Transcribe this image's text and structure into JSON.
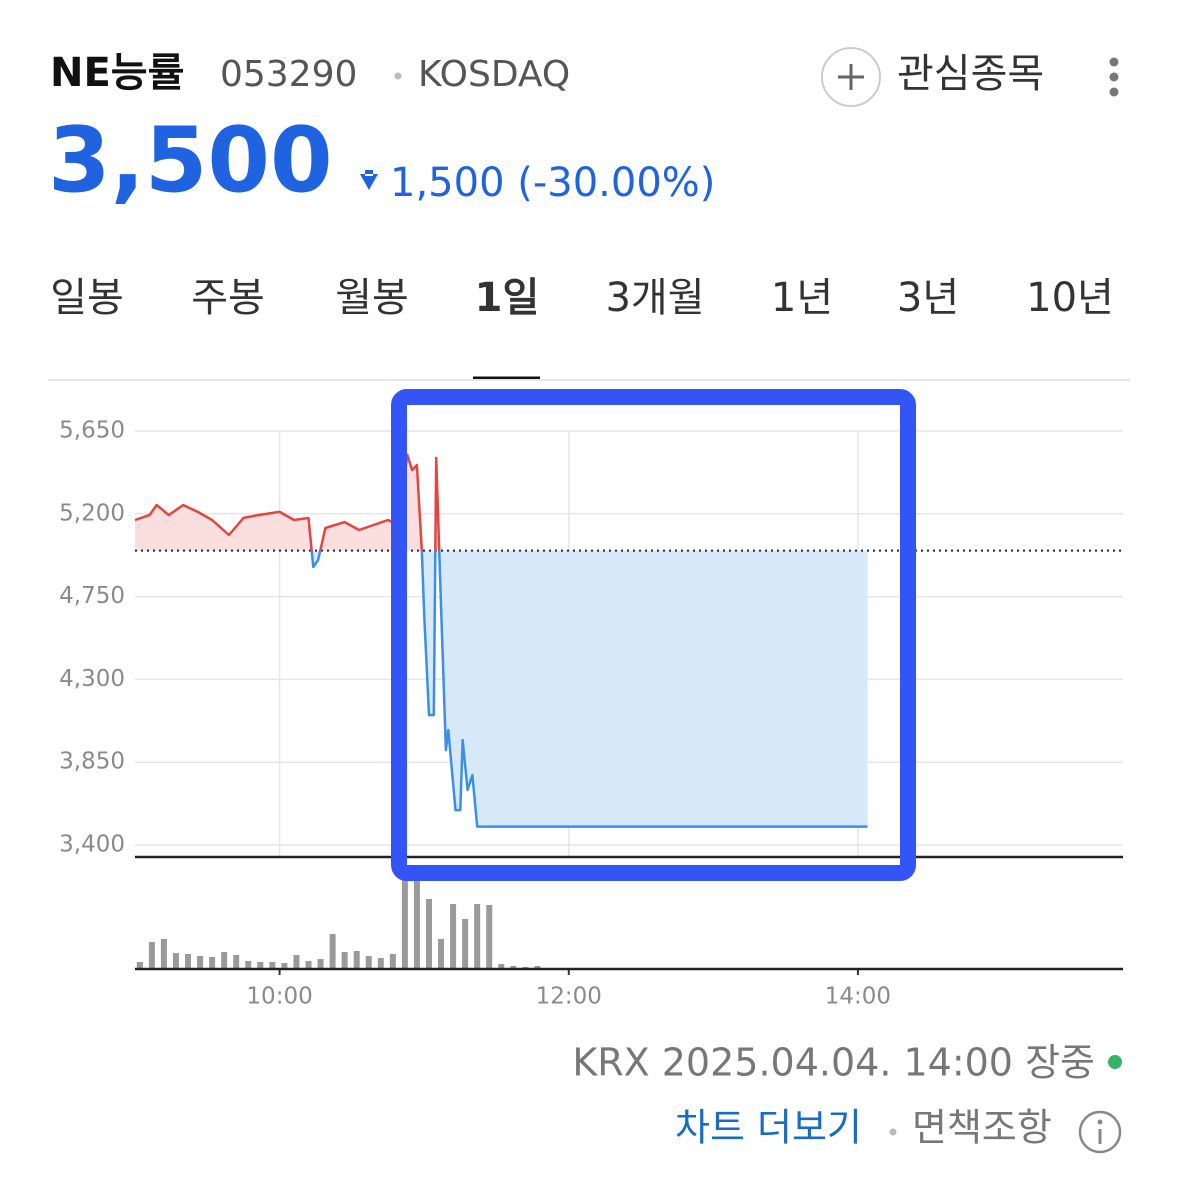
{
  "header": {
    "name": "NE능률",
    "code": "053290",
    "market": "KOSDAQ",
    "watch_button": "관심종목"
  },
  "price": {
    "current": "3,500",
    "change": "1,500 (-30.00%)"
  },
  "tabs": [
    "일봉",
    "주봉",
    "월봉",
    "1일",
    "3개월",
    "1년",
    "3년",
    "10년"
  ],
  "selected_tab": "1일",
  "chart_data": {
    "type": "line",
    "x": [
      540,
      546,
      549,
      554,
      560,
      566,
      572,
      579,
      585,
      591,
      600,
      606,
      612,
      614,
      616,
      619,
      627,
      633,
      639,
      645,
      649,
      653,
      655,
      657,
      659,
      660,
      662,
      664,
      665,
      667,
      669,
      670,
      673,
      675,
      676,
      678,
      680,
      682,
      844
    ],
    "values": [
      5166,
      5193,
      5248,
      5193,
      5248,
      5210,
      5166,
      5085,
      5177,
      5193,
      5210,
      5166,
      5177,
      4911,
      4949,
      5123,
      5155,
      5112,
      5139,
      5166,
      5139,
      5520,
      5438,
      5465,
      5003,
      4650,
      4106,
      4106,
      5503,
      4704,
      3916,
      4025,
      3590,
      3590,
      3970,
      3699,
      3780,
      3500,
      3500
    ],
    "baseline": 5000,
    "color_up": "#e5443f",
    "color_down": "#3b8fe4",
    "fill_up": "#fbdede",
    "fill_down": "#d7e8f9",
    "xlim": [
      540,
      950
    ],
    "xticks": [
      {
        "value": 600,
        "label": "10:00"
      },
      {
        "value": 720,
        "label": "12:00"
      },
      {
        "value": 840,
        "label": "14:00"
      }
    ],
    "ylim": [
      3335,
      5927
    ],
    "yticks": [
      {
        "value": 3400,
        "label": "3,400"
      },
      {
        "value": 3850,
        "label": "3,850"
      },
      {
        "value": 4300,
        "label": "4,300"
      },
      {
        "value": 4750,
        "label": "4,750"
      },
      {
        "value": 5200,
        "label": "5,200"
      },
      {
        "value": 5650,
        "label": "5,650"
      }
    ],
    "grid": true,
    "volume": {
      "color": "#9a9a9a",
      "ylim": [
        0,
        100
      ],
      "x": [
        542,
        547,
        552,
        557,
        562,
        567,
        572,
        577,
        582,
        587,
        592,
        597,
        602,
        607,
        612,
        617,
        622,
        627,
        632,
        637,
        642,
        647,
        652,
        657,
        662,
        667,
        672,
        677,
        682,
        687,
        692,
        697,
        702,
        707,
        736,
        797
      ],
      "values": [
        7,
        27,
        30,
        16,
        15,
        13,
        12,
        17,
        14,
        8,
        7,
        7,
        6,
        14,
        8,
        10,
        35,
        17,
        18,
        13,
        11,
        15,
        92,
        90,
        70,
        30,
        65,
        50,
        65,
        64,
        5,
        3,
        2,
        3,
        1,
        1
      ]
    }
  },
  "footer": {
    "status": "KRX 2025.04.04. 14:00 장중",
    "more_chart": "차트 더보기",
    "disclaimer": "면책조항"
  }
}
